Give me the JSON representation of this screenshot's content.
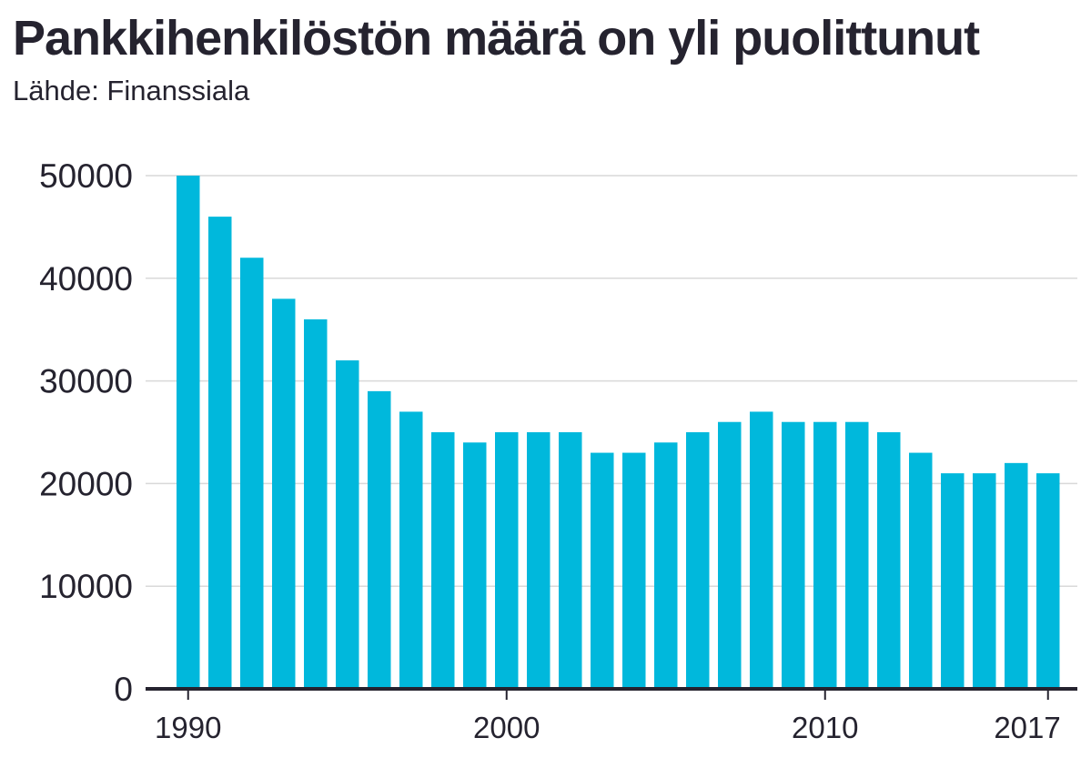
{
  "header": {
    "title": "Pankkihenkilöstön määrä on yli puolittunut",
    "subtitle": "Lähde: Finanssiala"
  },
  "colors": {
    "bar": "#00b8dc",
    "text": "#25232f",
    "grid": "#d9d9d9",
    "axis": "#25232f"
  },
  "chart_data": {
    "type": "bar",
    "title": "Pankkihenkilöstön määrä on yli puolittunut",
    "subtitle": "Lähde: Finanssiala",
    "categories": [
      "1990",
      "1991",
      "1992",
      "1993",
      "1994",
      "1995",
      "1996",
      "1997",
      "1998",
      "1999",
      "2000",
      "2001",
      "2002",
      "2003",
      "2004",
      "2005",
      "2006",
      "2007",
      "2008",
      "2009",
      "2010",
      "2011",
      "2012",
      "2013",
      "2014",
      "2015",
      "2016",
      "2017"
    ],
    "values": [
      50000,
      46000,
      42000,
      38000,
      36000,
      32000,
      29000,
      27000,
      25000,
      24000,
      25000,
      25000,
      25000,
      23000,
      23000,
      24000,
      25000,
      26000,
      27000,
      26000,
      26000,
      26000,
      25000,
      23000,
      21000,
      21000,
      22000,
      21000
    ],
    "x_tick_labels": [
      "1990",
      "2000",
      "2010",
      "2017"
    ],
    "y_ticks": [
      "0",
      "10000",
      "20000",
      "30000",
      "40000",
      "50000"
    ],
    "ylim": [
      0,
      50000
    ],
    "grid": true,
    "legend": "none"
  }
}
